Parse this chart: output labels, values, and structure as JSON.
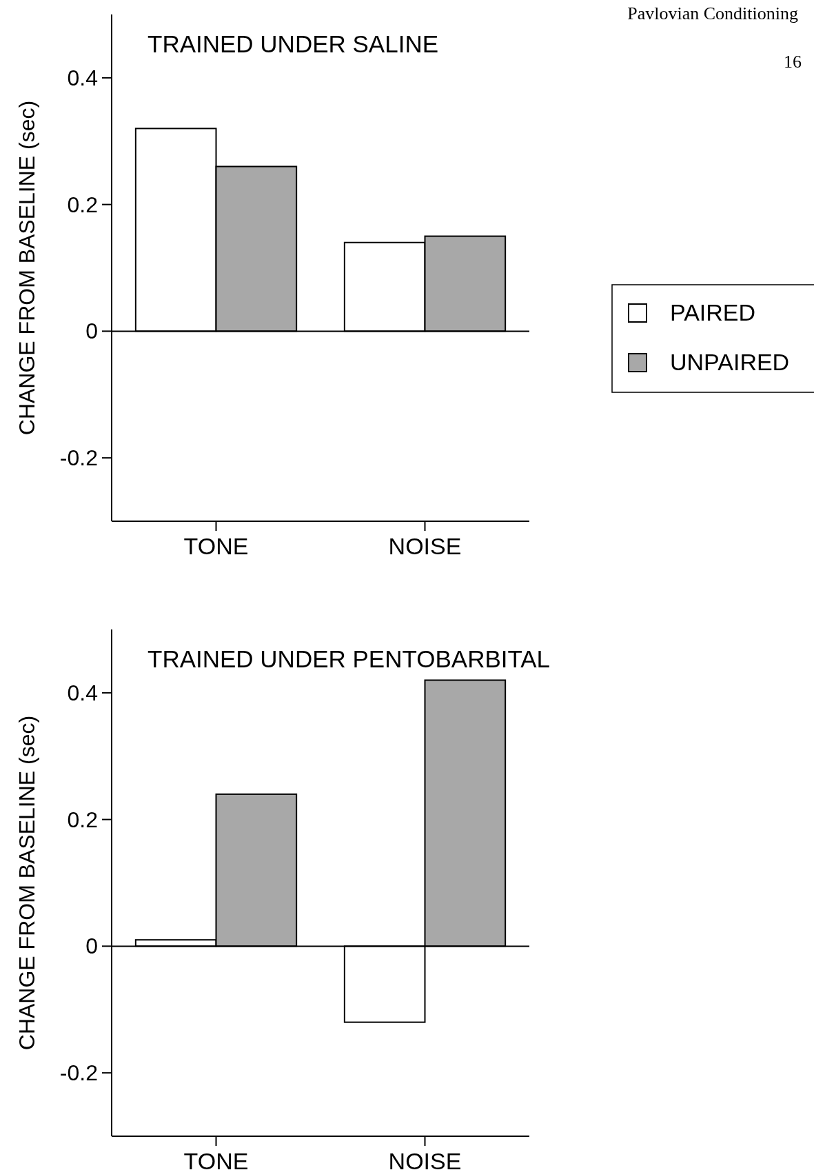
{
  "chart_data": [
    {
      "type": "bar",
      "title": "TRAINED UNDER SALINE",
      "ylabel": "CHANGE FROM BASELINE (sec)",
      "categories": [
        "TONE",
        "NOISE"
      ],
      "series": [
        {
          "name": "PAIRED",
          "color": "#ffffff",
          "values": [
            0.32,
            0.14
          ]
        },
        {
          "name": "UNPAIRED",
          "color": "#a8a8a8",
          "values": [
            0.26,
            0.15
          ]
        }
      ],
      "ylim": [
        -0.3,
        0.5
      ],
      "yticks": [
        0.4,
        0.2,
        0,
        -0.2
      ],
      "legend": "right",
      "annotations": [
        "Pavlovian Conditioning",
        "16"
      ]
    },
    {
      "type": "bar",
      "title": "TRAINED UNDER PENTOBARBITAL",
      "ylabel": "CHANGE FROM BASELINE (sec)",
      "categories": [
        "TONE",
        "NOISE"
      ],
      "series": [
        {
          "color": "#ffffff",
          "values": [
            0.01,
            -0.12
          ]
        },
        {
          "color": "#a8a8a8",
          "values": [
            0.24,
            0.42
          ]
        }
      ],
      "ylim": [
        -0.3,
        0.5
      ],
      "yticks": [
        0.4,
        0.2,
        0,
        -0.2
      ],
      "legend": false
    }
  ]
}
